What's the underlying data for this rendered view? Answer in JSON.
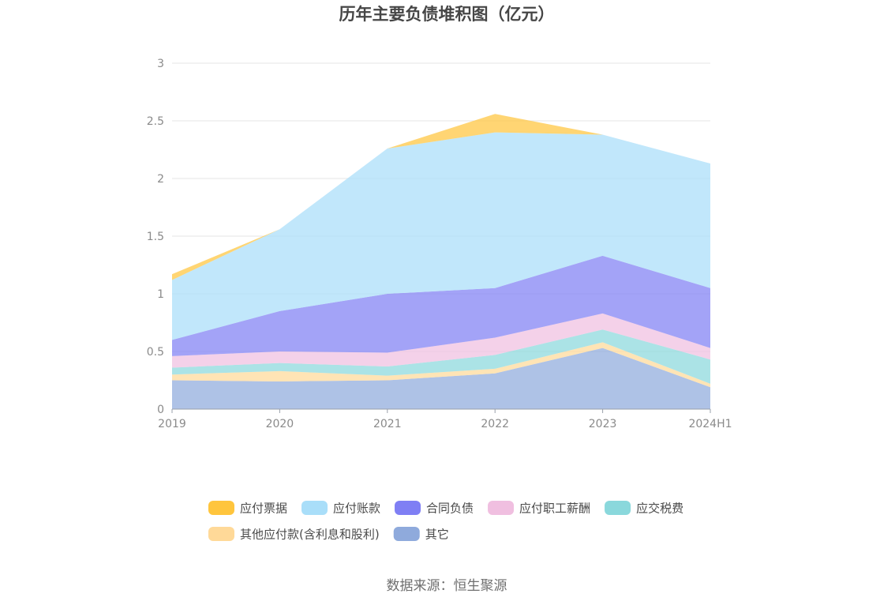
{
  "chart_data": {
    "type": "area",
    "stacked": true,
    "title": "历年主要负债堆积图（亿元）",
    "source": "数据来源：恒生聚源",
    "categories": [
      "2019",
      "2020",
      "2021",
      "2022",
      "2023",
      "2024H1"
    ],
    "y_ticks": [
      "0",
      "0.5",
      "1",
      "1.5",
      "2",
      "2.5",
      "3"
    ],
    "ylim": [
      0,
      3
    ],
    "grid": true,
    "legend_position": "bottom",
    "series": [
      {
        "name": "其它",
        "color": "#8faadc",
        "values": [
          0.25,
          0.24,
          0.25,
          0.31,
          0.53,
          0.19
        ]
      },
      {
        "name": "其他应付款(含利息和股利)",
        "color": "#ffd998",
        "values": [
          0.05,
          0.09,
          0.04,
          0.04,
          0.05,
          0.03
        ]
      },
      {
        "name": "应交税费",
        "color": "#8ad8dc",
        "values": [
          0.06,
          0.07,
          0.08,
          0.12,
          0.11,
          0.21
        ]
      },
      {
        "name": "应付职工薪酬",
        "color": "#f0bfe0",
        "values": [
          0.1,
          0.1,
          0.12,
          0.15,
          0.14,
          0.1
        ]
      },
      {
        "name": "合同负债",
        "color": "#7f7ff4",
        "values": [
          0.14,
          0.35,
          0.51,
          0.43,
          0.5,
          0.52
        ]
      },
      {
        "name": "应付账款",
        "color": "#a9def9",
        "values": [
          0.52,
          0.71,
          1.26,
          1.35,
          1.05,
          1.08
        ]
      },
      {
        "name": "应付票据",
        "color": "#ffc53d",
        "values": [
          0.05,
          0.0,
          0.0,
          0.16,
          0.0,
          0.0
        ]
      }
    ],
    "legend_order": [
      "应付票据",
      "应付账款",
      "合同负债",
      "应付职工薪酬",
      "应交税费",
      "其他应付款(含利息和股利)",
      "其它"
    ]
  }
}
